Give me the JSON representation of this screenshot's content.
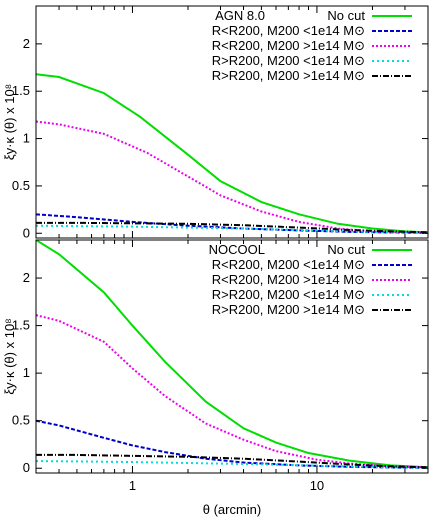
{
  "chart_data": [
    {
      "type": "line",
      "panel_label": "AGN 8.0",
      "ylabel": "ξy·κ (θ) x 10⁸",
      "xlabel": "",
      "xscale": "log",
      "xlim": [
        0.3,
        40
      ],
      "ylim": [
        -0.05,
        2.4
      ],
      "yticks": [
        "0",
        "0.5",
        "1",
        "1.5",
        "2"
      ],
      "legend_position": "top-right",
      "series": [
        {
          "name": "No cut",
          "color": "#00dd00",
          "dash": "solid",
          "x": [
            0.3,
            0.4,
            0.7,
            1.1,
            2.0,
            3.0,
            5.0,
            8.0,
            13,
            20,
            30,
            40
          ],
          "y": [
            1.68,
            1.65,
            1.48,
            1.23,
            0.83,
            0.55,
            0.33,
            0.2,
            0.1,
            0.05,
            0.02,
            0.01
          ]
        },
        {
          "name": "R<R200, M200 <1e14 M⊙",
          "color": "#0000cc",
          "dash": "4,2",
          "x": [
            0.3,
            0.5,
            1.0,
            2.0,
            4.0,
            8.0,
            15,
            25,
            40
          ],
          "y": [
            0.2,
            0.17,
            0.12,
            0.08,
            0.05,
            0.03,
            0.015,
            0.008,
            0.004
          ]
        },
        {
          "name": "R<R200, M200 >1e14 M⊙",
          "color": "#ee00ee",
          "dash": "2,2",
          "x": [
            0.3,
            0.4,
            0.7,
            1.2,
            2.0,
            3.0,
            5.0,
            8.0,
            13,
            20,
            30,
            40
          ],
          "y": [
            1.18,
            1.15,
            1.05,
            0.85,
            0.6,
            0.4,
            0.23,
            0.12,
            0.05,
            0.02,
            0.01,
            0.005
          ]
        },
        {
          "name": "R>R200, M200 <1e14 M⊙",
          "color": "#00dddd",
          "dash": "2,3",
          "x": [
            0.3,
            0.5,
            1.0,
            2.0,
            4.0,
            8.0,
            15,
            25,
            40
          ],
          "y": [
            0.08,
            0.075,
            0.07,
            0.06,
            0.05,
            0.035,
            0.02,
            0.01,
            0.005
          ]
        },
        {
          "name": "R>R200, M200 >1e14 M⊙",
          "color": "#000000",
          "dash": "6,2,1,2",
          "x": [
            0.3,
            0.5,
            1.0,
            2.0,
            4.0,
            8.0,
            15,
            25,
            40
          ],
          "y": [
            0.11,
            0.11,
            0.105,
            0.1,
            0.085,
            0.06,
            0.035,
            0.02,
            0.01
          ]
        }
      ]
    },
    {
      "type": "line",
      "panel_label": "NOCOOL",
      "ylabel": "ξy·κ (θ) x 10⁸",
      "xlabel": "θ (arcmin)",
      "xscale": "log",
      "xlim": [
        0.3,
        40
      ],
      "ylim": [
        -0.05,
        2.4
      ],
      "yticks": [
        "0",
        "0.5",
        "1",
        "1.5",
        "2"
      ],
      "xticks": [
        "1",
        "10"
      ],
      "legend_position": "top-right",
      "series": [
        {
          "name": "No cut",
          "color": "#00dd00",
          "dash": "solid",
          "x": [
            0.3,
            0.4,
            0.7,
            1.0,
            1.5,
            2.5,
            4.0,
            6.0,
            9.0,
            15,
            25,
            40
          ],
          "y": [
            2.4,
            2.25,
            1.85,
            1.5,
            1.12,
            0.7,
            0.42,
            0.27,
            0.16,
            0.08,
            0.03,
            0.01
          ]
        },
        {
          "name": "R<R200, M200 <1e14 M⊙",
          "color": "#0000cc",
          "dash": "4,2",
          "x": [
            0.3,
            0.4,
            0.7,
            1.0,
            1.5,
            2.5,
            4.0,
            8.0,
            15,
            25,
            40
          ],
          "y": [
            0.5,
            0.45,
            0.32,
            0.24,
            0.17,
            0.1,
            0.06,
            0.03,
            0.015,
            0.008,
            0.004
          ]
        },
        {
          "name": "R<R200, M200 >1e14 M⊙",
          "color": "#ee00ee",
          "dash": "2,2",
          "x": [
            0.3,
            0.4,
            0.7,
            1.0,
            1.5,
            2.5,
            4.0,
            6.0,
            10,
            15,
            25,
            40
          ],
          "y": [
            1.61,
            1.55,
            1.33,
            1.05,
            0.76,
            0.47,
            0.3,
            0.18,
            0.09,
            0.05,
            0.02,
            0.01
          ]
        },
        {
          "name": "R>R200, M200 <1e14 M⊙",
          "color": "#00dddd",
          "dash": "2,3",
          "x": [
            0.3,
            0.5,
            1.0,
            2.0,
            4.0,
            8.0,
            15,
            25,
            40
          ],
          "y": [
            0.075,
            0.072,
            0.065,
            0.055,
            0.045,
            0.032,
            0.02,
            0.01,
            0.005
          ]
        },
        {
          "name": "R>R200, M200 >1e14 M⊙",
          "color": "#000000",
          "dash": "6,2,1,2",
          "x": [
            0.3,
            0.5,
            1.0,
            2.0,
            4.0,
            8.0,
            15,
            25,
            40
          ],
          "y": [
            0.14,
            0.14,
            0.13,
            0.12,
            0.1,
            0.07,
            0.04,
            0.02,
            0.01
          ]
        }
      ]
    }
  ]
}
